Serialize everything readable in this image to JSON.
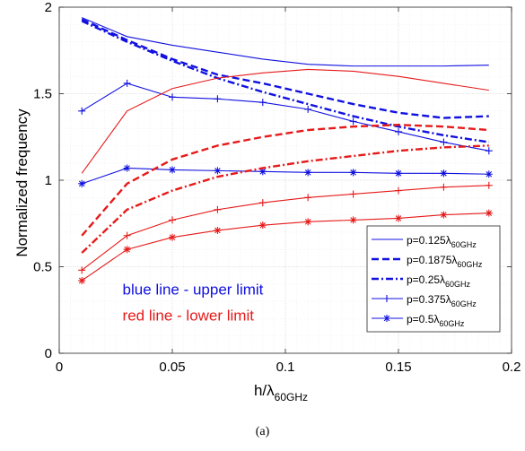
{
  "chart_data": {
    "type": "line",
    "xlabel_main": "h/λ",
    "xlabel_sub": "60GHz",
    "ylabel": "Normalized frequency",
    "xlim": [
      0,
      0.2
    ],
    "ylim": [
      0,
      2
    ],
    "xticks": [
      0,
      0.05,
      0.1,
      0.15,
      0.2
    ],
    "xtick_labels": [
      "0",
      "0.05",
      "0.1",
      "0.15",
      "0.2"
    ],
    "yticks": [
      0,
      0.5,
      1,
      1.5,
      2
    ],
    "ytick_labels": [
      "0",
      "0.5",
      "1",
      "1.5",
      "2"
    ],
    "grid": true,
    "minor_grid": true,
    "legend_position": "bottom-right",
    "colors": {
      "blue": "#1010e0",
      "red": "#e61a1a"
    },
    "x": [
      0.01,
      0.03,
      0.05,
      0.07,
      0.09,
      0.11,
      0.13,
      0.15,
      0.17,
      0.19
    ],
    "legend": [
      {
        "main": "p=0.125λ",
        "sub": "60GHz",
        "style": "solid"
      },
      {
        "main": "p=0.1875λ",
        "sub": "60GHz",
        "style": "dashed"
      },
      {
        "main": "p=0.25λ",
        "sub": "60GHz",
        "style": "dashdot"
      },
      {
        "main": "p=0.375λ",
        "sub": "60GHz",
        "style": "plus"
      },
      {
        "main": "p=0.5λ",
        "sub": "60GHz",
        "style": "star"
      }
    ],
    "series": [
      {
        "legend_index": 0,
        "limit": "upper",
        "color": "blue",
        "style": "solid",
        "marker": "none",
        "values": [
          1.94,
          1.83,
          1.78,
          1.74,
          1.7,
          1.67,
          1.66,
          1.66,
          1.66,
          1.665
        ]
      },
      {
        "legend_index": 1,
        "limit": "upper",
        "color": "blue",
        "style": "dashed",
        "marker": "none",
        "values": [
          1.93,
          1.81,
          1.7,
          1.61,
          1.56,
          1.5,
          1.44,
          1.39,
          1.36,
          1.37
        ]
      },
      {
        "legend_index": 2,
        "limit": "upper",
        "color": "blue",
        "style": "dashdot",
        "marker": "none",
        "values": [
          1.92,
          1.8,
          1.69,
          1.59,
          1.51,
          1.44,
          1.37,
          1.31,
          1.26,
          1.22
        ]
      },
      {
        "legend_index": 3,
        "limit": "upper",
        "color": "blue",
        "style": "solid",
        "marker": "plus",
        "values": [
          1.4,
          1.56,
          1.48,
          1.47,
          1.45,
          1.41,
          1.34,
          1.28,
          1.22,
          1.17
        ]
      },
      {
        "legend_index": 4,
        "limit": "upper",
        "color": "blue",
        "style": "solid",
        "marker": "star",
        "values": [
          0.98,
          1.07,
          1.06,
          1.055,
          1.05,
          1.045,
          1.045,
          1.04,
          1.04,
          1.035
        ]
      },
      {
        "legend_index": 0,
        "limit": "lower",
        "color": "red",
        "style": "solid",
        "marker": "none",
        "values": [
          1.04,
          1.4,
          1.53,
          1.59,
          1.62,
          1.64,
          1.63,
          1.6,
          1.56,
          1.52
        ]
      },
      {
        "legend_index": 1,
        "limit": "lower",
        "color": "red",
        "style": "dashed",
        "marker": "none",
        "values": [
          0.68,
          0.98,
          1.12,
          1.2,
          1.25,
          1.29,
          1.31,
          1.32,
          1.31,
          1.29
        ]
      },
      {
        "legend_index": 2,
        "limit": "lower",
        "color": "red",
        "style": "dashdot",
        "marker": "none",
        "values": [
          0.58,
          0.83,
          0.94,
          1.02,
          1.07,
          1.11,
          1.14,
          1.17,
          1.19,
          1.2
        ]
      },
      {
        "legend_index": 3,
        "limit": "lower",
        "color": "red",
        "style": "solid",
        "marker": "plus",
        "values": [
          0.48,
          0.68,
          0.77,
          0.83,
          0.87,
          0.9,
          0.92,
          0.94,
          0.96,
          0.97
        ]
      },
      {
        "legend_index": 4,
        "limit": "lower",
        "color": "red",
        "style": "solid",
        "marker": "star",
        "values": [
          0.42,
          0.6,
          0.67,
          0.71,
          0.74,
          0.76,
          0.77,
          0.78,
          0.8,
          0.81
        ]
      }
    ],
    "annotations": [
      {
        "text": "blue line - upper limit",
        "color": "blue",
        "x": 0.028,
        "y": 0.34
      },
      {
        "text": "red line - lower limit",
        "color": "red",
        "x": 0.028,
        "y": 0.19
      }
    ],
    "caption": "(a)"
  }
}
